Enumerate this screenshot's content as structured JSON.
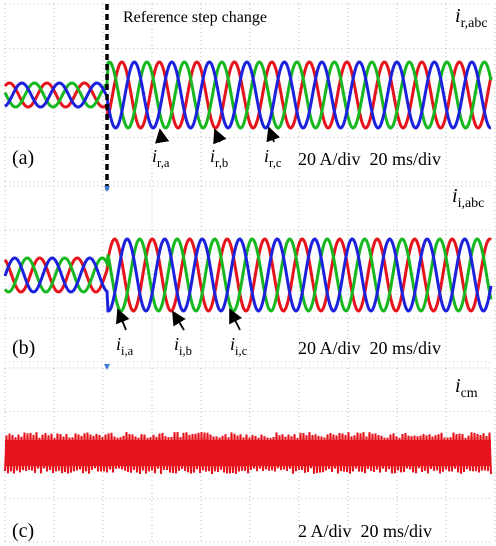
{
  "annotation": "Reference step change",
  "panels": [
    {
      "label": "(a)",
      "scale": "20 A/div  20 ms/div",
      "signal": {
        "symbol": "i",
        "subscript": "r,abc"
      },
      "phases": [
        {
          "symbol": "i",
          "subscript": "r,a"
        },
        {
          "symbol": "i",
          "subscript": "r,b"
        },
        {
          "symbol": "i",
          "subscript": "r,c"
        }
      ]
    },
    {
      "label": "(b)",
      "scale": "20 A/div  20 ms/div",
      "signal": {
        "symbol": "i",
        "subscript": "i,abc"
      },
      "phases": [
        {
          "symbol": "i",
          "subscript": "i,a"
        },
        {
          "symbol": "i",
          "subscript": "i,b"
        },
        {
          "symbol": "i",
          "subscript": "i,c"
        }
      ]
    },
    {
      "label": "(c)",
      "scale": "2 A/div  20 ms/div",
      "signal": {
        "symbol": "i",
        "subscript": "cm"
      },
      "phases": []
    }
  ]
}
